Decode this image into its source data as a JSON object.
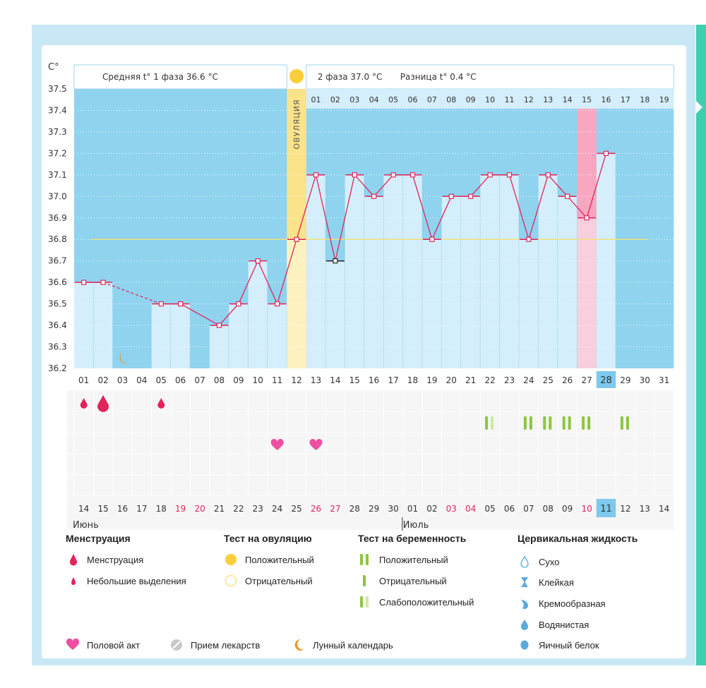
{
  "header": {
    "unit": "C°",
    "phase1": "Средняя t° 1 фаза 36.6 °C",
    "phase2": "2 фаза 37.0 °C",
    "diff": "Разница t° 0.4 °C",
    "ovulation_label": "ОВУЛЯЦИЯ"
  },
  "chart_data": {
    "type": "line",
    "ylim": [
      36.2,
      37.5
    ],
    "y_ticks": [
      "37.5",
      "37.4",
      "37.3",
      "37.2",
      "37.1",
      "37.0",
      "36.9",
      "36.8",
      "36.7",
      "36.6",
      "36.5",
      "36.4",
      "36.3",
      "36.2"
    ],
    "cycle_days": [
      "01",
      "02",
      "03",
      "04",
      "05",
      "06",
      "07",
      "08",
      "09",
      "10",
      "11",
      "12",
      "13",
      "14",
      "15",
      "16",
      "17",
      "18",
      "19",
      "20",
      "21",
      "22",
      "23",
      "24",
      "25",
      "26",
      "27",
      "28",
      "29",
      "30",
      "31"
    ],
    "phase2_days": [
      "01",
      "02",
      "03",
      "04",
      "05",
      "06",
      "07",
      "08",
      "09",
      "10",
      "11",
      "12",
      "13",
      "14",
      "15",
      "16",
      "17",
      "18",
      "19"
    ],
    "dates": [
      "14",
      "15",
      "16",
      "17",
      "18",
      "19",
      "20",
      "21",
      "22",
      "23",
      "24",
      "25",
      "26",
      "27",
      "28",
      "29",
      "30",
      "01",
      "02",
      "03",
      "04",
      "05",
      "06",
      "07",
      "08",
      "09",
      "10",
      "11",
      "12",
      "13",
      "14"
    ],
    "weekend_date_indices": [
      5,
      6,
      12,
      13,
      19,
      20,
      26
    ],
    "month_labels": [
      {
        "label": "Июнь",
        "index": 0
      },
      {
        "label": "Июль",
        "index": 17
      }
    ],
    "highlight_day_index": 27,
    "ovulation_index": 11,
    "coverline": 36.8,
    "pink_index": 26,
    "series": [
      {
        "values": [
          36.6,
          36.6,
          null,
          null,
          36.5,
          36.5,
          null,
          36.4,
          36.5,
          36.7,
          36.5,
          36.8,
          37.1,
          36.7,
          37.1,
          37.0,
          37.1,
          37.1,
          36.8,
          37.0,
          37.0,
          37.1,
          37.1,
          36.8,
          37.1,
          37.0,
          36.9,
          37.2,
          null,
          null,
          null
        ]
      }
    ],
    "dashed_segments": [
      [
        1,
        4
      ],
      [
        6,
        7
      ]
    ],
    "black_point_index": 13,
    "bleeding": [
      {
        "index": 0,
        "size": "small"
      },
      {
        "index": 1,
        "size": "large"
      },
      {
        "index": 4,
        "size": "small"
      }
    ],
    "pregnancy_tests": [
      {
        "index": 21,
        "type": "weak"
      },
      {
        "index": 23,
        "type": "positive"
      },
      {
        "index": 24,
        "type": "positive"
      },
      {
        "index": 25,
        "type": "positive"
      },
      {
        "index": 26,
        "type": "positive"
      },
      {
        "index": 28,
        "type": "positive"
      }
    ],
    "intercourse": [
      10,
      12
    ],
    "moon": 2
  },
  "colors": {
    "bg_blue": "#8fd3ef",
    "bar_light": "#d4eefb",
    "line": "#e2245a",
    "ovulation": "#fbe38a",
    "pink": "#f7a8c0",
    "coverline": "#f2e27a",
    "highlight": "#7ec9ec",
    "green": "#8cc63f"
  },
  "legend": {
    "menstruation": {
      "title": "Менструация",
      "items": [
        "Менструация",
        "Небольшие выделения"
      ]
    },
    "ovulation_test": {
      "title": "Тест на овуляцию",
      "items": [
        "Положительный",
        "Отрицательный"
      ]
    },
    "pregnancy_test": {
      "title": "Тест на беременность",
      "items": [
        "Положительный",
        "Отрицательный",
        "Слабоположительный"
      ]
    },
    "cervical": {
      "title": "Цервикальная жидкость",
      "items": [
        "Сухо",
        "Клейкая",
        "Кремообразная",
        "Водянистая",
        "Яичный белок"
      ]
    },
    "bottom": [
      "Половой акт",
      "Прием лекарств",
      "Лунный календарь"
    ]
  }
}
